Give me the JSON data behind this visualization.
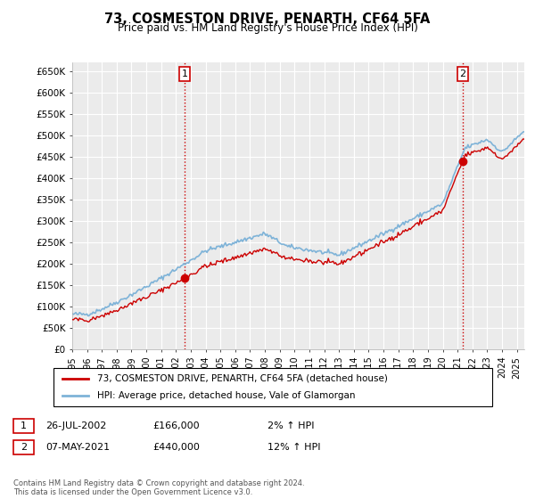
{
  "title": "73, COSMESTON DRIVE, PENARTH, CF64 5FA",
  "subtitle": "Price paid vs. HM Land Registry's House Price Index (HPI)",
  "ylim": [
    0,
    670000
  ],
  "yticks": [
    0,
    50000,
    100000,
    150000,
    200000,
    250000,
    300000,
    350000,
    400000,
    450000,
    500000,
    550000,
    600000,
    650000
  ],
  "background_color": "#ffffff",
  "plot_bg_color": "#ebebeb",
  "grid_color": "#ffffff",
  "sale1_price": 166000,
  "sale2_price": 440000,
  "sale1_x": 2002.57,
  "sale2_x": 2021.35,
  "hpi_line_color": "#7eb3d8",
  "price_line_color": "#cc0000",
  "sale_marker_color": "#cc0000",
  "legend_entry1": "73, COSMESTON DRIVE, PENARTH, CF64 5FA (detached house)",
  "legend_entry2": "HPI: Average price, detached house, Vale of Glamorgan",
  "annotation1_date": "26-JUL-2002",
  "annotation1_price": "£166,000",
  "annotation1_hpi": "2% ↑ HPI",
  "annotation2_date": "07-MAY-2021",
  "annotation2_price": "£440,000",
  "annotation2_hpi": "12% ↑ HPI",
  "footer": "Contains HM Land Registry data © Crown copyright and database right 2024.\nThis data is licensed under the Open Government Licence v3.0."
}
